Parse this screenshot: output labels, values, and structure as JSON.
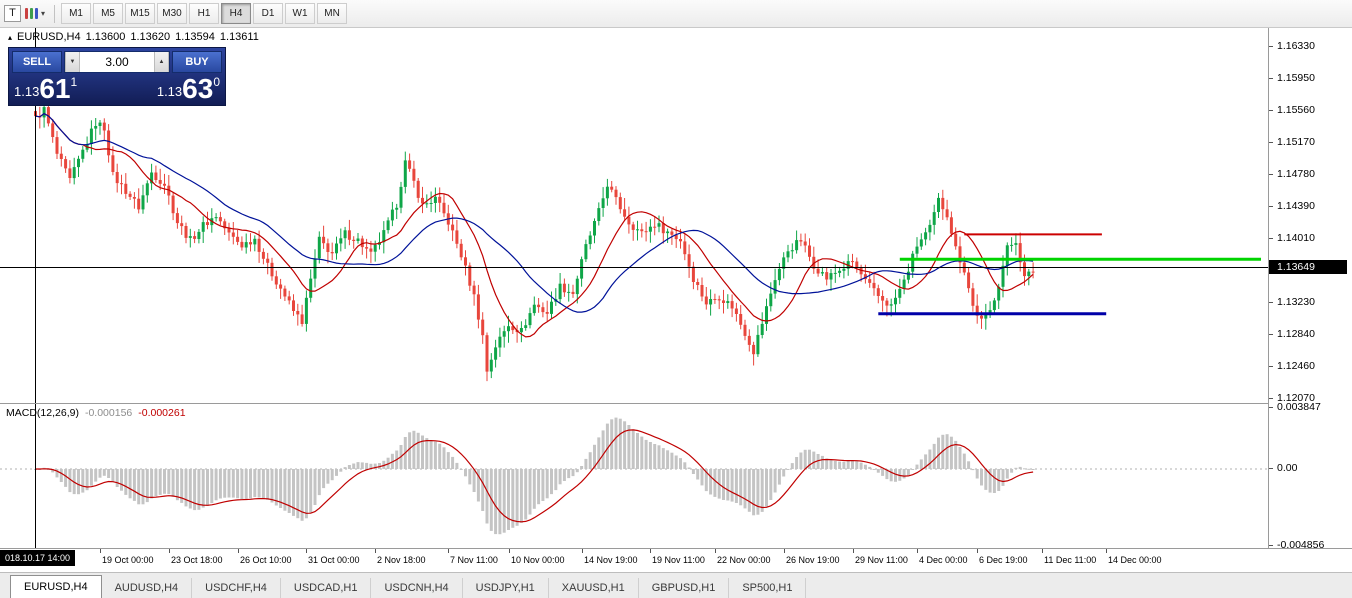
{
  "icons": {
    "triangle": "▴",
    "dropdown_arrow": "▾",
    "up_arrow": "▲",
    "down_arrow": "▼",
    "chart_template": "T"
  },
  "toolbar": {
    "chart_icon": "T",
    "timeframes": [
      {
        "label": "M1"
      },
      {
        "label": "M5"
      },
      {
        "label": "M15"
      },
      {
        "label": "M30"
      },
      {
        "label": "H1"
      },
      {
        "label": "H4",
        "active": true
      },
      {
        "label": "D1"
      },
      {
        "label": "W1"
      },
      {
        "label": "MN"
      }
    ]
  },
  "chart_header": {
    "symbol": "EURUSD,H4",
    "open": "1.13600",
    "high": "1.13620",
    "low": "1.13594",
    "close": "1.13611"
  },
  "trade_panel": {
    "sell_label": "SELL",
    "buy_label": "BUY",
    "volume": "3.00",
    "sell_price": {
      "small": "1.13",
      "big": "61",
      "sup": "1"
    },
    "buy_price": {
      "small": "1.13",
      "big": "63",
      "sup": "0"
    }
  },
  "price_axis": {
    "labels": [
      "1.16330",
      "1.15950",
      "1.15560",
      "1.15170",
      "1.14780",
      "1.14390",
      "1.14010",
      "1.13620",
      "1.13230",
      "1.12840",
      "1.12460",
      "1.12070"
    ],
    "crosshair_price": "1.13649"
  },
  "macd": {
    "label": "MACD(12,26,9)",
    "value1": "-0.000156",
    "value2": "-0.000261",
    "axis_top": "0.003847",
    "axis_zero": "0.00",
    "axis_bottom": "-0.004856"
  },
  "time_axis": {
    "crosshair_time": "018.10.17 14:00",
    "labels": [
      {
        "text": "19 Oct 00:00",
        "i": 15
      },
      {
        "text": "23 Oct 18:00",
        "i": 31
      },
      {
        "text": "26 Oct 10:00",
        "i": 47
      },
      {
        "text": "31 Oct 00:00",
        "i": 63
      },
      {
        "text": "2 Nov 18:00",
        "i": 79
      },
      {
        "text": "7 Nov 11:00",
        "i": 96
      },
      {
        "text": "10 Nov 00:00",
        "i": 110
      },
      {
        "text": "14 Nov 19:00",
        "i": 127
      },
      {
        "text": "19 Nov 11:00",
        "i": 143
      },
      {
        "text": "22 Nov 00:00",
        "i": 158
      },
      {
        "text": "26 Nov 19:00",
        "i": 174
      },
      {
        "text": "29 Nov 11:00",
        "i": 190
      },
      {
        "text": "4 Dec 00:00",
        "i": 205
      },
      {
        "text": "6 Dec 19:00",
        "i": 219
      },
      {
        "text": "11 Dec 11:00",
        "i": 234
      },
      {
        "text": "14 Dec 00:00",
        "i": 249
      }
    ]
  },
  "tabs": [
    {
      "label": "EURUSD,H4",
      "active": true
    },
    {
      "label": "AUDUSD,H4"
    },
    {
      "label": "USDCHF,H4"
    },
    {
      "label": "USDCAD,H1"
    },
    {
      "label": "USDCNH,H4"
    },
    {
      "label": "USDJPY,H1"
    },
    {
      "label": "XAUUSD,H1"
    },
    {
      "label": "GBPUSD,H1"
    },
    {
      "label": "SP500,H1"
    }
  ],
  "chart_data": {
    "type": "candlestick",
    "symbol": "EURUSD",
    "timeframe": "H4",
    "price_range": [
      1.1207,
      1.1633
    ],
    "bar_count": 233,
    "close_keyframes": [
      [
        0,
        1.1545
      ],
      [
        2,
        1.1556
      ],
      [
        5,
        1.1502
      ],
      [
        8,
        1.147
      ],
      [
        11,
        1.1506
      ],
      [
        14,
        1.154
      ],
      [
        16,
        1.1534
      ],
      [
        18,
        1.1476
      ],
      [
        21,
        1.1458
      ],
      [
        24,
        1.1438
      ],
      [
        27,
        1.148
      ],
      [
        30,
        1.1466
      ],
      [
        33,
        1.142
      ],
      [
        36,
        1.1398
      ],
      [
        39,
        1.1416
      ],
      [
        42,
        1.1428
      ],
      [
        45,
        1.1405
      ],
      [
        48,
        1.1392
      ],
      [
        51,
        1.14
      ],
      [
        54,
        1.1366
      ],
      [
        57,
        1.134
      ],
      [
        60,
        1.1312
      ],
      [
        62,
        1.13
      ],
      [
        64,
        1.135
      ],
      [
        66,
        1.1398
      ],
      [
        69,
        1.1382
      ],
      [
        72,
        1.1406
      ],
      [
        75,
        1.1398
      ],
      [
        78,
        1.138
      ],
      [
        81,
        1.1406
      ],
      [
        84,
        1.1442
      ],
      [
        86,
        1.1492
      ],
      [
        88,
        1.1468
      ],
      [
        90,
        1.144
      ],
      [
        93,
        1.1448
      ],
      [
        96,
        1.142
      ],
      [
        99,
        1.138
      ],
      [
        102,
        1.133
      ],
      [
        104,
        1.1282
      ],
      [
        105,
        1.124
      ],
      [
        107,
        1.127
      ],
      [
        110,
        1.1296
      ],
      [
        113,
        1.1288
      ],
      [
        116,
        1.132
      ],
      [
        119,
        1.131
      ],
      [
        122,
        1.1342
      ],
      [
        125,
        1.1334
      ],
      [
        128,
        1.139
      ],
      [
        131,
        1.1432
      ],
      [
        133,
        1.1466
      ],
      [
        135,
        1.1446
      ],
      [
        138,
        1.142
      ],
      [
        141,
        1.1406
      ],
      [
        144,
        1.1418
      ],
      [
        147,
        1.1408
      ],
      [
        150,
        1.1398
      ],
      [
        153,
        1.1352
      ],
      [
        156,
        1.1322
      ],
      [
        159,
        1.133
      ],
      [
        162,
        1.1318
      ],
      [
        165,
        1.1286
      ],
      [
        167,
        1.1264
      ],
      [
        169,
        1.1298
      ],
      [
        172,
        1.1352
      ],
      [
        175,
        1.1386
      ],
      [
        178,
        1.1398
      ],
      [
        181,
        1.1368
      ],
      [
        184,
        1.1352
      ],
      [
        187,
        1.1362
      ],
      [
        190,
        1.1372
      ],
      [
        193,
        1.1348
      ],
      [
        196,
        1.133
      ],
      [
        199,
        1.1318
      ],
      [
        202,
        1.1348
      ],
      [
        205,
        1.1392
      ],
      [
        208,
        1.1412
      ],
      [
        210,
        1.1446
      ],
      [
        212,
        1.143
      ],
      [
        214,
        1.1388
      ],
      [
        216,
        1.1362
      ],
      [
        218,
        1.1318
      ],
      [
        220,
        1.13
      ],
      [
        222,
        1.1312
      ],
      [
        224,
        1.1346
      ],
      [
        226,
        1.1388
      ],
      [
        228,
        1.1398
      ],
      [
        230,
        1.1352
      ],
      [
        232,
        1.1361
      ]
    ],
    "moving_averages": [
      {
        "name": "fast",
        "period": 12
      },
      {
        "name": "slow",
        "period": 28
      }
    ],
    "horizontal_lines": [
      {
        "name": "resistance",
        "color": "#cc0000",
        "price": 1.1405,
        "i1": 216,
        "i2": 248,
        "width": 2
      },
      {
        "name": "current-level",
        "color": "#00d400",
        "price": 1.1375,
        "i1": 201,
        "i2": 285,
        "width": 3
      },
      {
        "name": "support",
        "color": "#0000a8",
        "price": 1.1309,
        "i1": 196,
        "i2": 249,
        "width": 3
      }
    ],
    "crosshair": {
      "bar_index": 0,
      "price": 1.13649
    },
    "macd_settings": {
      "fast": 12,
      "slow": 26,
      "signal": 9
    },
    "macd_axis_range": [
      -0.004856,
      0.003847
    ],
    "colors": {
      "up": "#0fa648",
      "down": "#e8463c",
      "ma_fast": "#c00000",
      "ma_slow": "#001299",
      "macd_hist": "#c4c4c4",
      "macd_signal": "#c00000",
      "crosshair": "#000000"
    }
  }
}
